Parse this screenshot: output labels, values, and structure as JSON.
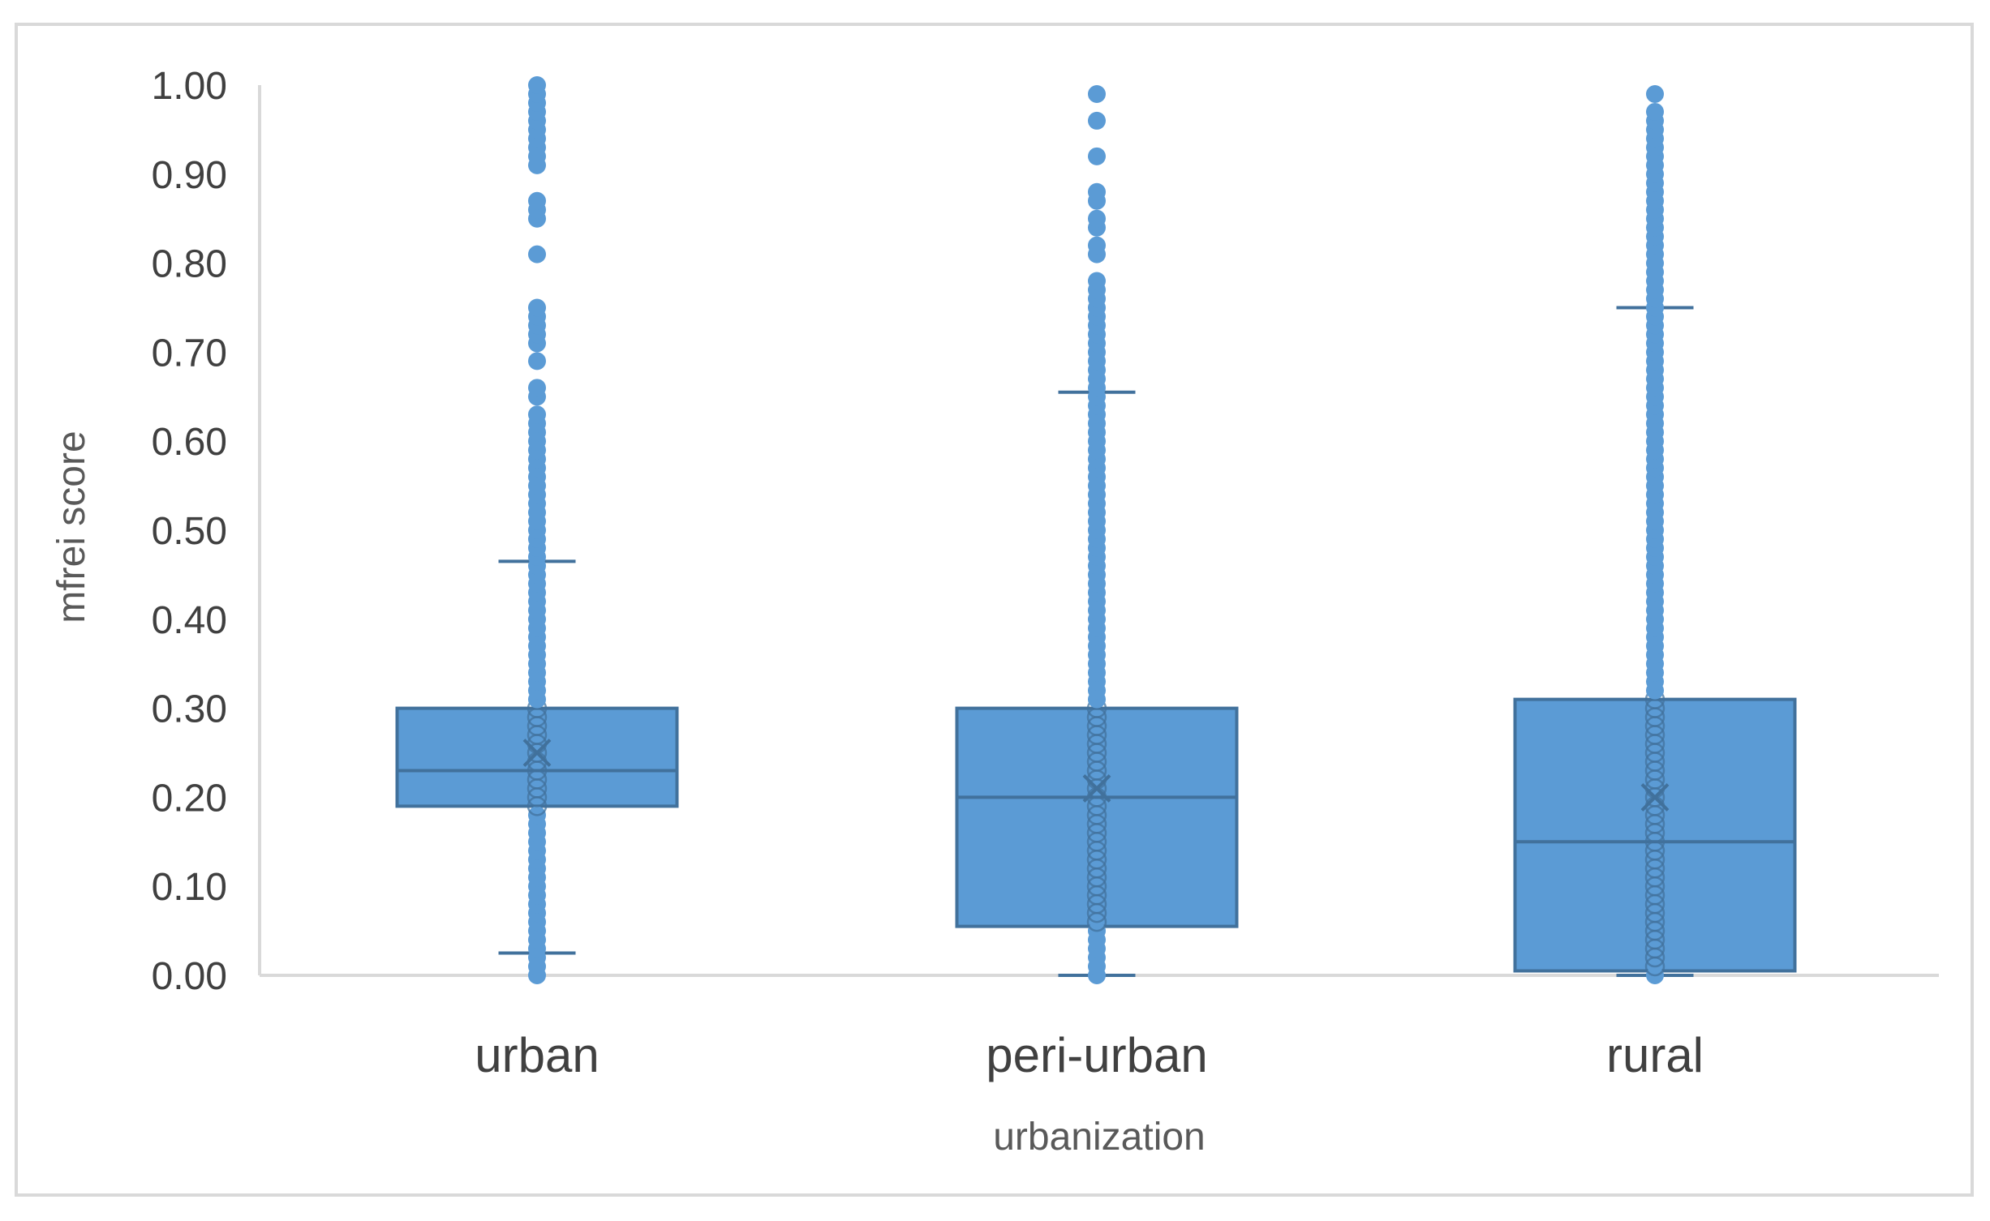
{
  "chart_data": {
    "type": "box",
    "title": "",
    "xlabel": "urbanization",
    "ylabel": "mfrei score",
    "ylim": [
      0,
      1
    ],
    "y_ticks": [
      "0.00",
      "0.10",
      "0.20",
      "0.30",
      "0.40",
      "0.50",
      "0.60",
      "0.70",
      "0.80",
      "0.90",
      "1.00"
    ],
    "categories": [
      "urban",
      "peri-urban",
      "rural"
    ],
    "grid": false,
    "legend": "none",
    "colors": {
      "box_fill": "#5b9bd5",
      "box_edge": "#41719c",
      "points": "#5b9bd5",
      "axis": "#d9d9d9"
    },
    "boxes": [
      {
        "category": "urban",
        "q1": 0.19,
        "median": 0.23,
        "q3": 0.3,
        "mean": 0.25,
        "whisker_low": 0.025,
        "whisker_high": 0.465,
        "points": [
          0.0,
          0.01,
          0.02,
          0.03,
          0.04,
          0.05,
          0.06,
          0.07,
          0.08,
          0.09,
          0.1,
          0.11,
          0.12,
          0.13,
          0.14,
          0.15,
          0.16,
          0.17,
          0.18,
          0.19,
          0.2,
          0.21,
          0.22,
          0.23,
          0.24,
          0.25,
          0.26,
          0.27,
          0.28,
          0.29,
          0.3,
          0.31,
          0.32,
          0.33,
          0.34,
          0.35,
          0.36,
          0.37,
          0.38,
          0.39,
          0.4,
          0.41,
          0.42,
          0.43,
          0.44,
          0.45,
          0.46,
          0.47,
          0.48,
          0.49,
          0.5,
          0.51,
          0.52,
          0.53,
          0.54,
          0.55,
          0.56,
          0.57,
          0.58,
          0.59,
          0.6,
          0.61,
          0.62,
          0.63,
          0.65,
          0.66,
          0.69,
          0.71,
          0.72,
          0.73,
          0.74,
          0.75,
          0.81,
          0.85,
          0.86,
          0.87,
          0.91,
          0.92,
          0.93,
          0.94,
          0.95,
          0.96,
          0.97,
          0.98,
          0.99,
          1.0
        ]
      },
      {
        "category": "peri-urban",
        "q1": 0.055,
        "median": 0.2,
        "q3": 0.3,
        "mean": 0.21,
        "whisker_low": 0.0,
        "whisker_high": 0.655,
        "points": [
          0.0,
          0.01,
          0.02,
          0.03,
          0.04,
          0.05,
          0.06,
          0.07,
          0.08,
          0.09,
          0.1,
          0.11,
          0.12,
          0.13,
          0.14,
          0.15,
          0.16,
          0.17,
          0.18,
          0.19,
          0.2,
          0.21,
          0.22,
          0.23,
          0.24,
          0.25,
          0.26,
          0.27,
          0.28,
          0.29,
          0.3,
          0.31,
          0.32,
          0.33,
          0.34,
          0.35,
          0.36,
          0.37,
          0.38,
          0.39,
          0.4,
          0.41,
          0.42,
          0.43,
          0.44,
          0.45,
          0.46,
          0.47,
          0.48,
          0.49,
          0.5,
          0.51,
          0.52,
          0.53,
          0.54,
          0.55,
          0.56,
          0.57,
          0.58,
          0.59,
          0.6,
          0.61,
          0.62,
          0.63,
          0.64,
          0.65,
          0.66,
          0.67,
          0.68,
          0.69,
          0.7,
          0.71,
          0.72,
          0.73,
          0.74,
          0.75,
          0.76,
          0.77,
          0.78,
          0.81,
          0.82,
          0.84,
          0.85,
          0.87,
          0.88,
          0.92,
          0.96,
          0.99
        ]
      },
      {
        "category": "rural",
        "q1": 0.005,
        "median": 0.15,
        "q3": 0.31,
        "mean": 0.2,
        "whisker_low": 0.0,
        "whisker_high": 0.75,
        "points": [
          0.0,
          0.01,
          0.02,
          0.03,
          0.04,
          0.05,
          0.06,
          0.07,
          0.08,
          0.09,
          0.1,
          0.11,
          0.12,
          0.13,
          0.14,
          0.15,
          0.16,
          0.17,
          0.18,
          0.19,
          0.2,
          0.21,
          0.22,
          0.23,
          0.24,
          0.25,
          0.26,
          0.27,
          0.28,
          0.29,
          0.3,
          0.31,
          0.32,
          0.33,
          0.34,
          0.35,
          0.36,
          0.37,
          0.38,
          0.39,
          0.4,
          0.41,
          0.42,
          0.43,
          0.44,
          0.45,
          0.46,
          0.47,
          0.48,
          0.49,
          0.5,
          0.51,
          0.52,
          0.53,
          0.54,
          0.55,
          0.56,
          0.57,
          0.58,
          0.59,
          0.6,
          0.61,
          0.62,
          0.63,
          0.64,
          0.65,
          0.66,
          0.67,
          0.68,
          0.69,
          0.7,
          0.71,
          0.72,
          0.73,
          0.74,
          0.75,
          0.76,
          0.77,
          0.78,
          0.79,
          0.8,
          0.81,
          0.82,
          0.83,
          0.84,
          0.85,
          0.86,
          0.87,
          0.88,
          0.89,
          0.9,
          0.91,
          0.92,
          0.93,
          0.94,
          0.95,
          0.96,
          0.97,
          0.99
        ]
      }
    ]
  }
}
